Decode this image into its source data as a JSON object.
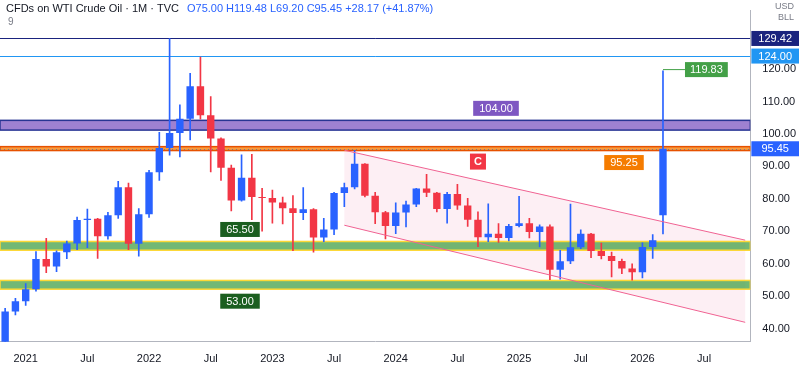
{
  "chart_data": {
    "type": "candlestick",
    "title": "CFDs on WTI Crude Oil · 1M · TVC",
    "subtitle": "O75.00 H119.48 L69.20 C95.45 +28.17 (+41.87%)",
    "header_extra": [
      "9"
    ],
    "corner_labels": [
      "USD",
      "BLL"
    ],
    "categories": [
      null,
      null,
      "2021",
      null,
      null,
      null,
      null,
      null,
      "Jul",
      null,
      null,
      null,
      null,
      null,
      "2022",
      null,
      null,
      null,
      null,
      null,
      "Jul",
      null,
      null,
      null,
      null,
      null,
      "2023",
      null,
      null,
      null,
      null,
      null,
      "Jul",
      null,
      null,
      null,
      null,
      null,
      "2024",
      null,
      null,
      null,
      null,
      null,
      "Jul",
      null,
      null,
      null,
      null,
      null,
      "2025",
      null,
      null,
      null,
      null,
      null,
      "Jul",
      null,
      null,
      null,
      null,
      null,
      "2026",
      null,
      null,
      null,
      null,
      null,
      "Jul",
      null,
      null,
      null,
      null
    ],
    "candles": {
      "up_color": "#2962ff",
      "down_color": "#f23645",
      "open": [
        35.8,
        45.3,
        48.5,
        52.2,
        61.5,
        59.2,
        63.6,
        66.3,
        73.5,
        73.9,
        68.5,
        75.0,
        83.6,
        66.2,
        75.3,
        88.2,
        95.7,
        100.3,
        104.7,
        114.7,
        105.8,
        98.6,
        89.6,
        79.5,
        86.5,
        80.6,
        80.3,
        78.9,
        77.1,
        75.7,
        76.8,
        68.1,
        70.6,
        81.8,
        83.6,
        90.8,
        81.0,
        75.9,
        71.7,
        75.8,
        78.3,
        83.2,
        81.9,
        76.9,
        81.5,
        78.0,
        73.6,
        68.2,
        69.3,
        68.0,
        71.7,
        72.5,
        69.8,
        71.5,
        58.2,
        60.8,
        65.1,
        69.3,
        64.0,
        62.4,
        60.9,
        58.6,
        57.4,
        65.2,
        75.0,
        null,
        null,
        null,
        null,
        null,
        null,
        null,
        null
      ],
      "high": [
        46.3,
        49.4,
        53.9,
        63.8,
        67.9,
        64.0,
        67.0,
        74.4,
        76.9,
        74.0,
        75.9,
        85.4,
        84.9,
        77.0,
        88.8,
        100.5,
        129.4,
        109.0,
        118.7,
        123.7,
        111.5,
        98.8,
        90.4,
        93.6,
        93.7,
        83.3,
        82.7,
        80.6,
        81.0,
        83.5,
        77.0,
        74.0,
        82.0,
        84.9,
        95.0,
        90.9,
        82.0,
        76.2,
        78.8,
        79.3,
        83.3,
        87.6,
        82.0,
        82.0,
        84.5,
        80.2,
        76.0,
        78.5,
        72.4,
        72.2,
        80.8,
        74.0,
        72.0,
        72.0,
        64.2,
        78.4,
        70.5,
        69.4,
        66.4,
        63.6,
        61.5,
        60.0,
        66.5,
        69.0,
        119.48,
        null,
        null,
        null,
        null,
        null,
        null,
        null,
        null
      ],
      "low": [
        33.6,
        44.3,
        47.2,
        51.6,
        57.3,
        57.6,
        61.6,
        64.4,
        65.0,
        61.7,
        67.6,
        74.0,
        64.4,
        62.4,
        74.3,
        85.7,
        93.5,
        92.9,
        98.2,
        104.6,
        88.3,
        85.7,
        76.3,
        79.3,
        73.6,
        70.1,
        72.5,
        72.3,
        64.1,
        73.6,
        63.6,
        66.8,
        69.0,
        77.6,
        83.1,
        80.6,
        72.4,
        67.7,
        69.3,
        71.4,
        77.6,
        80.7,
        76.0,
        72.5,
        76.8,
        71.5,
        65.3,
        66.8,
        66.6,
        67.1,
        71.4,
        68.0,
        65.2,
        55.1,
        55.3,
        60.1,
        64.7,
        61.9,
        61.5,
        56.0,
        57.0,
        55.0,
        55.7,
        61.7,
        69.2,
        null,
        null,
        null,
        null,
        null,
        null,
        null,
        null
      ],
      "close": [
        45.3,
        48.5,
        52.2,
        61.5,
        59.2,
        63.6,
        66.3,
        73.5,
        73.9,
        68.5,
        75.0,
        83.6,
        66.2,
        75.3,
        88.2,
        95.7,
        100.3,
        104.7,
        114.7,
        105.8,
        98.6,
        89.6,
        79.5,
        86.5,
        80.6,
        80.3,
        78.9,
        77.1,
        75.7,
        76.8,
        68.1,
        70.6,
        81.8,
        83.6,
        90.8,
        81.0,
        75.9,
        71.7,
        75.8,
        78.3,
        83.2,
        81.9,
        76.9,
        81.5,
        78.0,
        73.6,
        68.2,
        69.3,
        68.0,
        71.7,
        72.5,
        69.8,
        71.5,
        58.2,
        60.8,
        65.1,
        69.3,
        64.0,
        62.4,
        60.9,
        58.6,
        57.4,
        65.2,
        67.3,
        95.45,
        null,
        null,
        null,
        null,
        null,
        null,
        null,
        null
      ]
    },
    "channel": {
      "color": "#f06292",
      "upper": [
        null,
        null,
        null,
        null,
        null,
        null,
        null,
        null,
        null,
        null,
        null,
        null,
        null,
        null,
        null,
        null,
        null,
        null,
        null,
        null,
        null,
        null,
        null,
        null,
        null,
        null,
        null,
        null,
        null,
        null,
        null,
        null,
        null,
        95.0,
        null,
        null,
        null,
        null,
        null,
        null,
        null,
        null,
        null,
        null,
        null,
        null,
        null,
        null,
        null,
        null,
        null,
        null,
        null,
        null,
        null,
        null,
        null,
        null,
        null,
        null,
        null,
        null,
        null,
        null,
        null,
        null,
        null,
        null,
        null,
        null,
        null,
        null,
        67.3
      ],
      "lower": [
        null,
        null,
        null,
        null,
        null,
        null,
        null,
        null,
        null,
        null,
        null,
        null,
        null,
        null,
        null,
        null,
        null,
        null,
        null,
        null,
        null,
        null,
        null,
        null,
        null,
        null,
        null,
        null,
        null,
        null,
        null,
        null,
        null,
        71.9,
        null,
        null,
        null,
        null,
        null,
        null,
        null,
        null,
        null,
        null,
        null,
        null,
        null,
        null,
        null,
        null,
        null,
        null,
        null,
        null,
        null,
        null,
        null,
        null,
        null,
        null,
        null,
        null,
        null,
        null,
        null,
        null,
        null,
        null,
        null,
        null,
        null,
        null,
        42.0
      ]
    },
    "zones": [
      {
        "label": "104.00",
        "from": 101.2,
        "to": 104.2,
        "color": "#7e57c2"
      },
      {
        "label": "95.25",
        "from": 94.9,
        "to": 96.1,
        "color": "#f57c00"
      },
      {
        "label": "65.50",
        "from": 64.2,
        "to": 66.9,
        "color": "#43a047"
      },
      {
        "label": "53.00",
        "from": 52.2,
        "to": 54.9,
        "color": "#43a047"
      }
    ],
    "levels": [
      {
        "value": 129.42,
        "label": "129.42",
        "color": "#1a237e",
        "line_style": "solid"
      },
      {
        "value": 124,
        "label": "124.00",
        "color": "#2196f3",
        "line_style": "solid"
      },
      {
        "value": 95.45,
        "label": "95.45",
        "color": "#2962ff",
        "line_style": "dotted"
      }
    ],
    "high_marker": {
      "value": 119.83,
      "label": "119.83",
      "color": "#43a047"
    },
    "annotations": [
      {
        "text": "C",
        "x": 46,
        "y": 91.5,
        "color": "#f23645"
      }
    ],
    "ylim": [
      36,
      138
    ],
    "yticks": [
      {
        "value": 40,
        "label": "40.00"
      },
      {
        "value": 50,
        "label": "50.00"
      },
      {
        "value": 60,
        "label": "60.00"
      },
      {
        "value": 70,
        "label": "70.00"
      },
      {
        "value": 80,
        "label": "80.00"
      },
      {
        "value": 90,
        "label": "90.00"
      },
      {
        "value": 100,
        "label": "100.00"
      },
      {
        "value": 110,
        "label": "110.00"
      },
      {
        "value": 120,
        "label": "120.00"
      }
    ],
    "grid": false
  }
}
